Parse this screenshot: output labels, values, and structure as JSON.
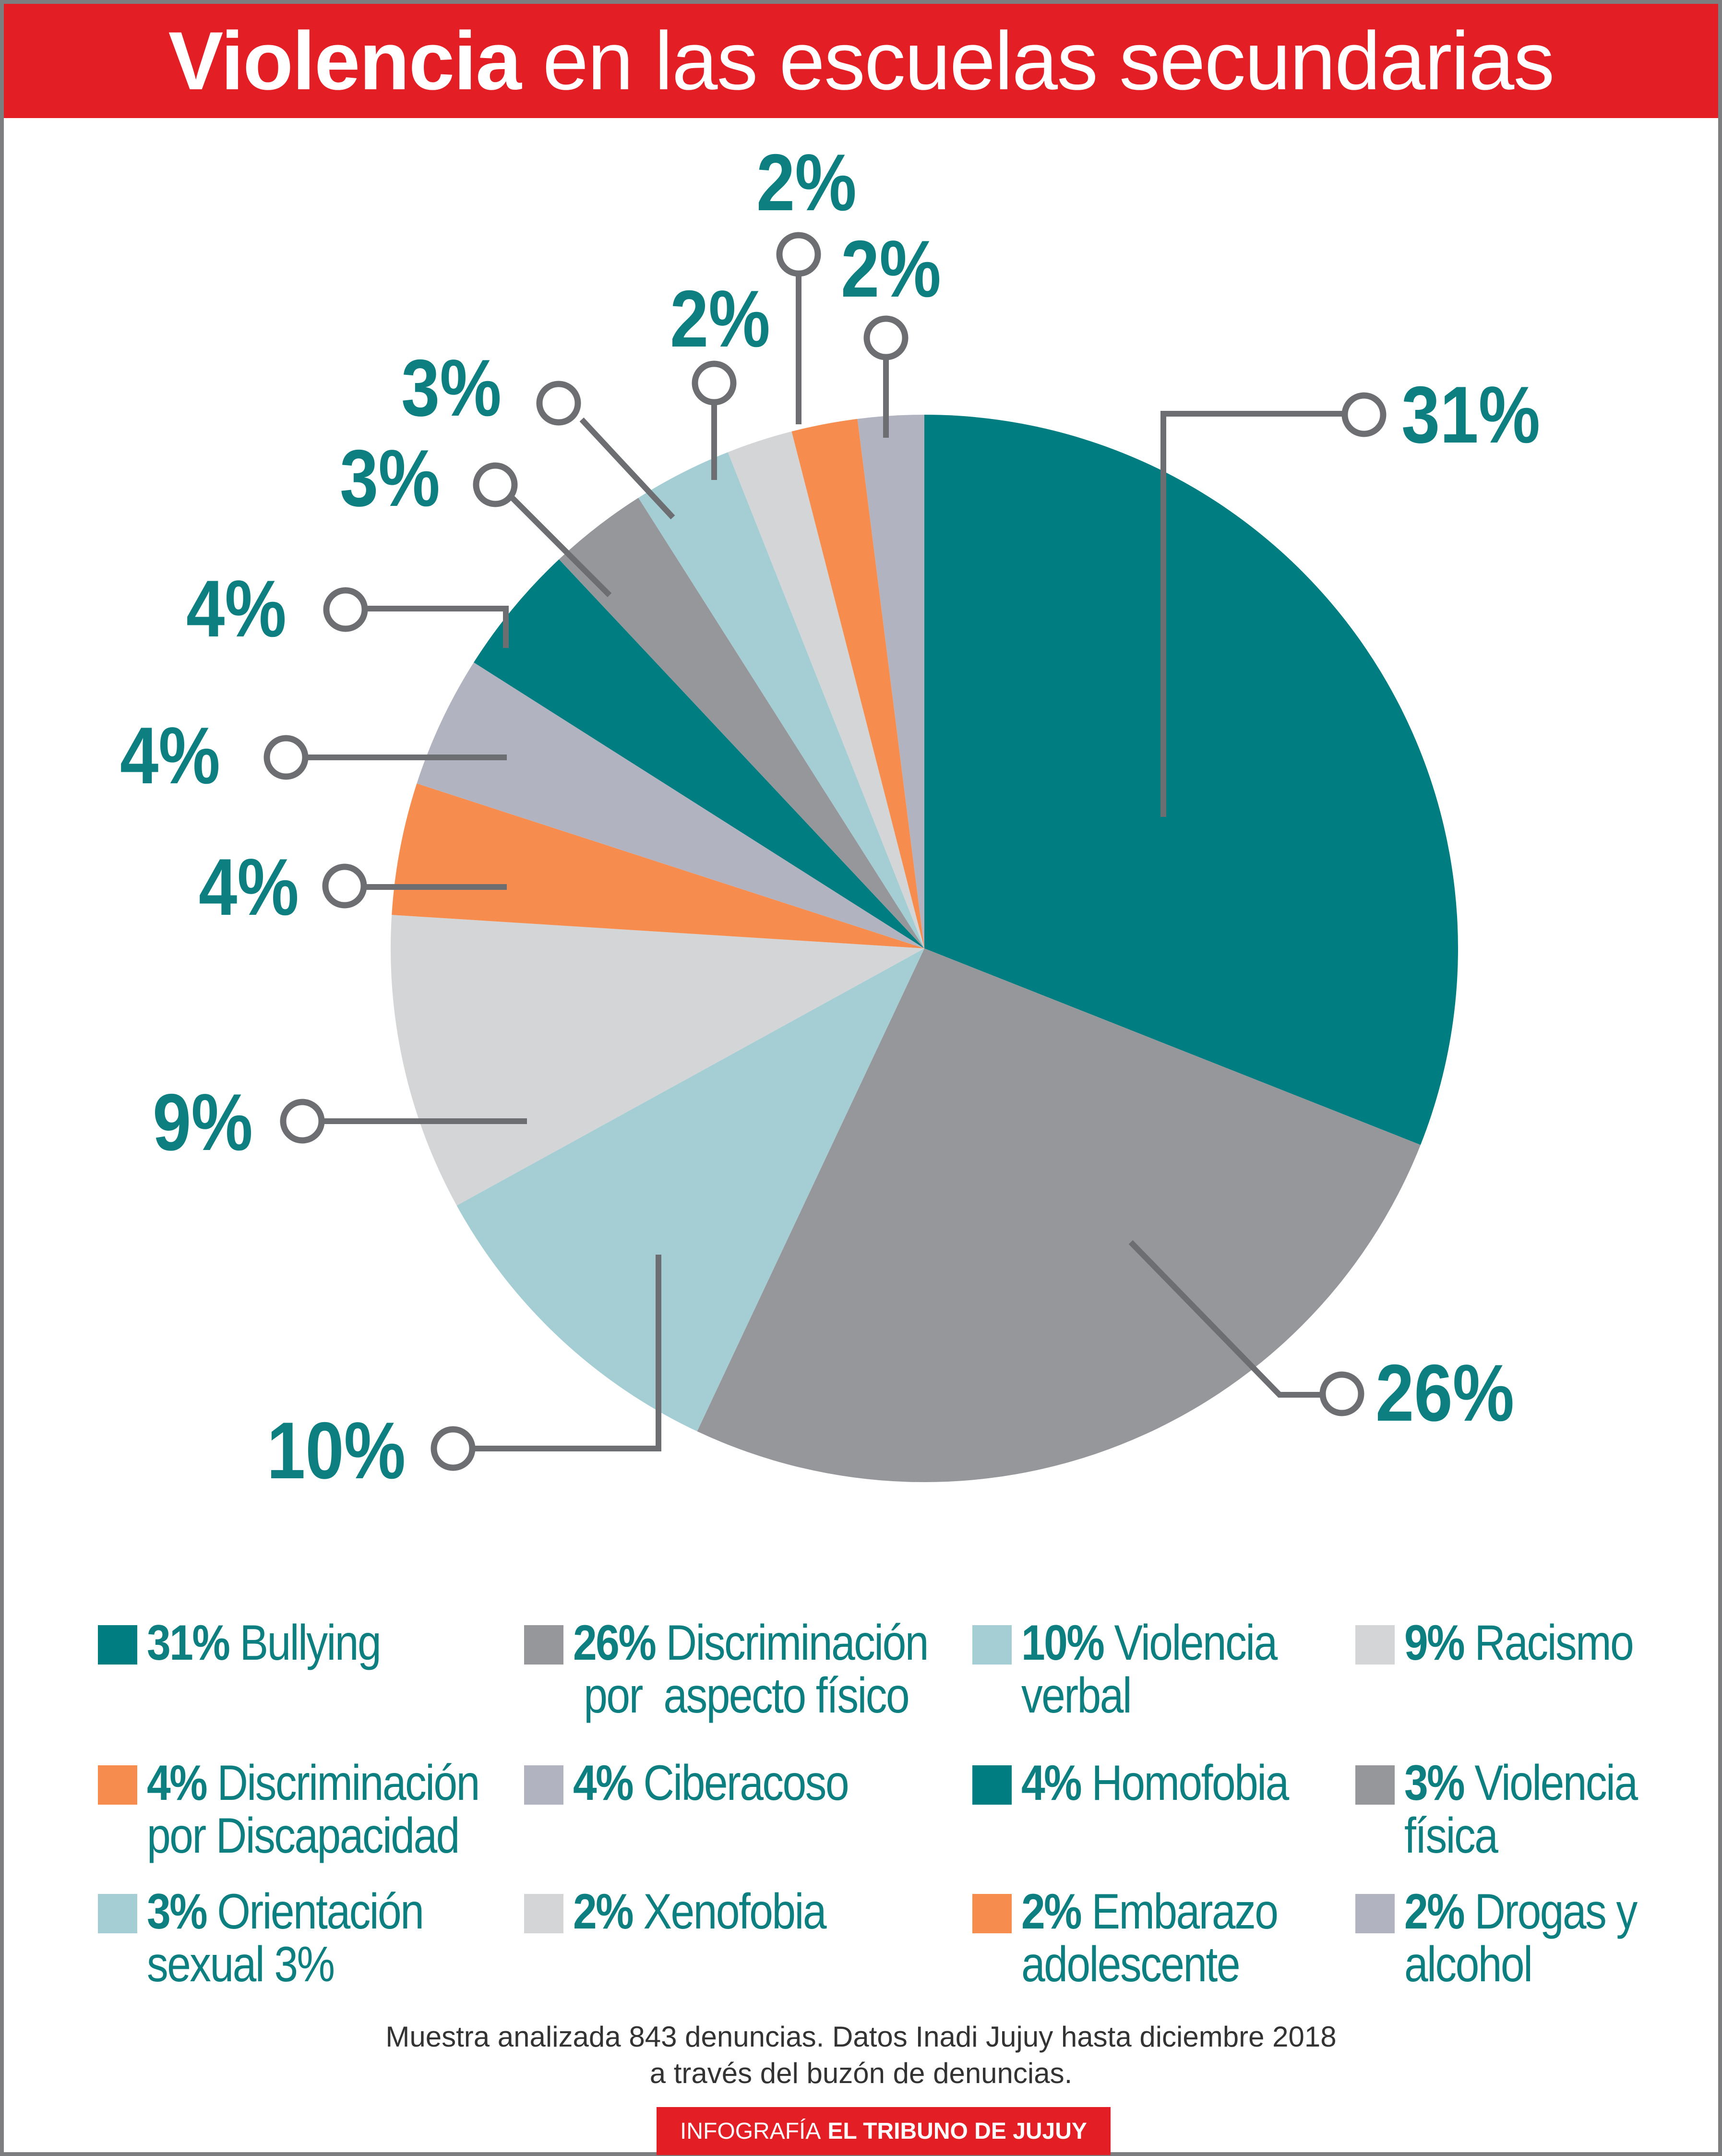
{
  "header": {
    "title_bold": "Violencia",
    "title_rest": "en las escuelas secundarias"
  },
  "chart_data": {
    "type": "pie",
    "slices": [
      {
        "label": "Bullying",
        "value": 31,
        "pct_label": "31%",
        "color": "#007d80"
      },
      {
        "label": "Discriminación por aspecto físico",
        "value": 26,
        "pct_label": "26%",
        "color": "#96979b"
      },
      {
        "label": "Violencia verbal",
        "value": 10,
        "pct_label": "10%",
        "color": "#a4ced4"
      },
      {
        "label": "Racismo",
        "value": 9,
        "pct_label": "9%",
        "color": "#d4d5d7"
      },
      {
        "label": "Discriminación por Discapacidad",
        "value": 4,
        "pct_label": "4%",
        "color": "#f68d4f"
      },
      {
        "label": "Ciberacoso",
        "value": 4,
        "pct_label": "4%",
        "color": "#b1b3c0"
      },
      {
        "label": "Homofobia",
        "value": 4,
        "pct_label": "4%",
        "color": "#007d80"
      },
      {
        "label": "Violencia física",
        "value": 3,
        "pct_label": "3%",
        "color": "#96979b"
      },
      {
        "label": "Orientación sexual 3%",
        "value": 3,
        "pct_label": "3%",
        "color": "#a4ced4"
      },
      {
        "label": "Xenofobia",
        "value": 2,
        "pct_label": "2%",
        "color": "#d4d5d7"
      },
      {
        "label": "Embarazo adolescente",
        "value": 2,
        "pct_label": "2%",
        "color": "#f68d4f"
      },
      {
        "label": "Drogas y alcohol",
        "value": 2,
        "pct_label": "2%",
        "color": "#b1b3c0"
      }
    ]
  },
  "legend": [
    {
      "pct": "31%",
      "line1": "Bullying",
      "line2": ""
    },
    {
      "pct": "26%",
      "line1": "Discriminación",
      "line2": " por  aspecto físico"
    },
    {
      "pct": "10%",
      "line1": "Violencia",
      "line2": "verbal"
    },
    {
      "pct": "9%",
      "line1": "Racismo",
      "line2": ""
    },
    {
      "pct": "4%",
      "line1": "Discriminación",
      "line2": "por Discapacidad"
    },
    {
      "pct": "4%",
      "line1": "Ciberacoso",
      "line2": ""
    },
    {
      "pct": "4%",
      "line1": "Homofobia",
      "line2": ""
    },
    {
      "pct": "3%",
      "line1": "Violencia",
      "line2": "física"
    },
    {
      "pct": "3%",
      "line1": "Orientación",
      "line2": "sexual 3%"
    },
    {
      "pct": "2%",
      "line1": "Xenofobia",
      "line2": ""
    },
    {
      "pct": "2%",
      "line1": "Embarazo",
      "line2": "adolescente"
    },
    {
      "pct": "2%",
      "line1": "Drogas y",
      "line2": "alcohol"
    }
  ],
  "footer": {
    "note_line1": "Muestra analizada 843 denuncias. Datos Inadi Jujuy hasta diciembre 2018",
    "note_line2": "a través del buzón de denuncias.",
    "credit_prefix": "INFOGRAFÍA",
    "credit_bold": "EL TRIBUNO DE JUJUY"
  },
  "colors": {
    "title_red": "#e31e24",
    "label_teal": "#0d7f80",
    "leader_gray": "#6d6e71"
  }
}
